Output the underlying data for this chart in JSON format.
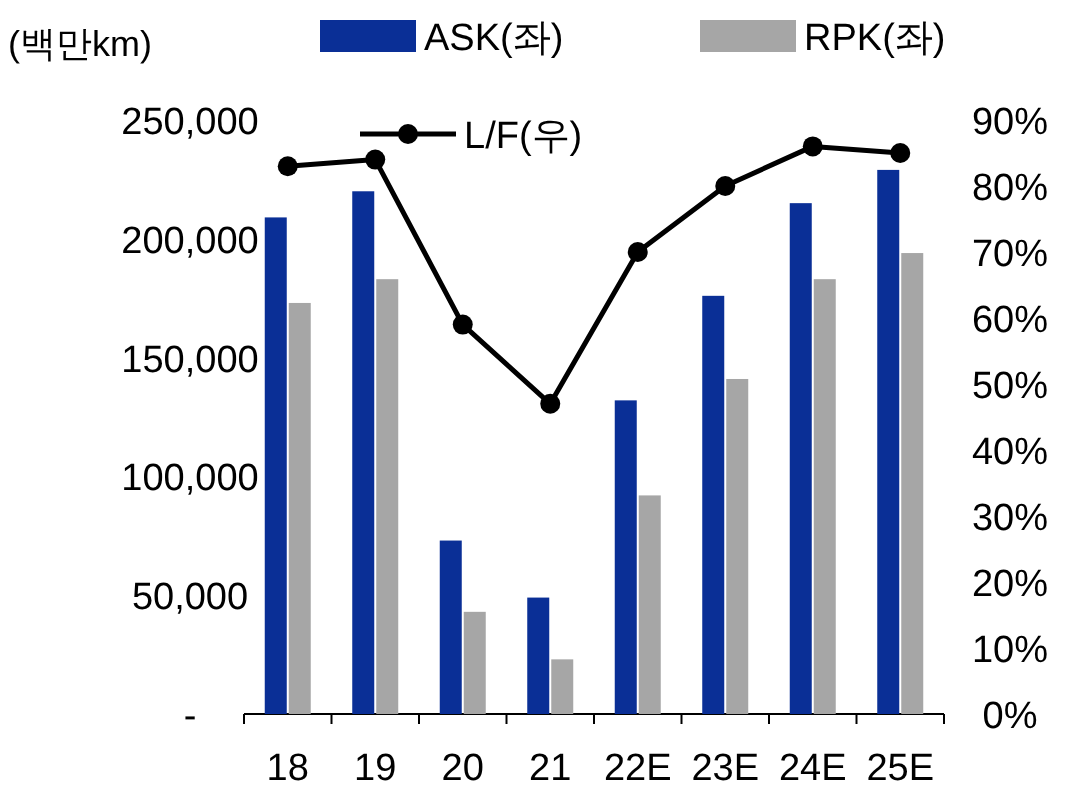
{
  "chart_data": {
    "type": "bar",
    "ylabel": "(백만km)",
    "categories": [
      "18",
      "19",
      "20",
      "21",
      "22E",
      "23E",
      "24E",
      "25E"
    ],
    "series": [
      {
        "name": "ASK(좌)",
        "color": "#0a2f96",
        "values": [
          209000,
          220000,
          73000,
          49000,
          132000,
          176000,
          215000,
          229000
        ]
      },
      {
        "name": "RPK(좌)",
        "color": "#a6a6a6",
        "values": [
          173000,
          183000,
          43000,
          23000,
          92000,
          141000,
          183000,
          194000
        ]
      },
      {
        "name": "L/F(우)",
        "type": "line",
        "axis": "y2",
        "color": "#000000",
        "values": [
          83,
          84,
          59,
          47,
          70,
          80,
          86,
          85
        ]
      }
    ],
    "marker": "circle",
    "legend": "top",
    "grid": false,
    "ylim": [
      0,
      250000
    ],
    "yticks": [
      {
        "value": 0,
        "label": "-"
      },
      {
        "value": 50000,
        "label": "50,000"
      },
      {
        "value": 100000,
        "label": "100,000"
      },
      {
        "value": 150000,
        "label": "150,000"
      },
      {
        "value": 200000,
        "label": "200,000"
      },
      {
        "value": 250000,
        "label": "250,000"
      }
    ],
    "y2lim": [
      0,
      90
    ],
    "y2ticks": [
      {
        "value": 0,
        "label": "0%"
      },
      {
        "value": 10,
        "label": "10%"
      },
      {
        "value": 20,
        "label": "20%"
      },
      {
        "value": 30,
        "label": "30%"
      },
      {
        "value": 40,
        "label": "40%"
      },
      {
        "value": 50,
        "label": "50%"
      },
      {
        "value": 60,
        "label": "60%"
      },
      {
        "value": 70,
        "label": "70%"
      },
      {
        "value": 80,
        "label": "80%"
      },
      {
        "value": 90,
        "label": "90%"
      }
    ]
  }
}
